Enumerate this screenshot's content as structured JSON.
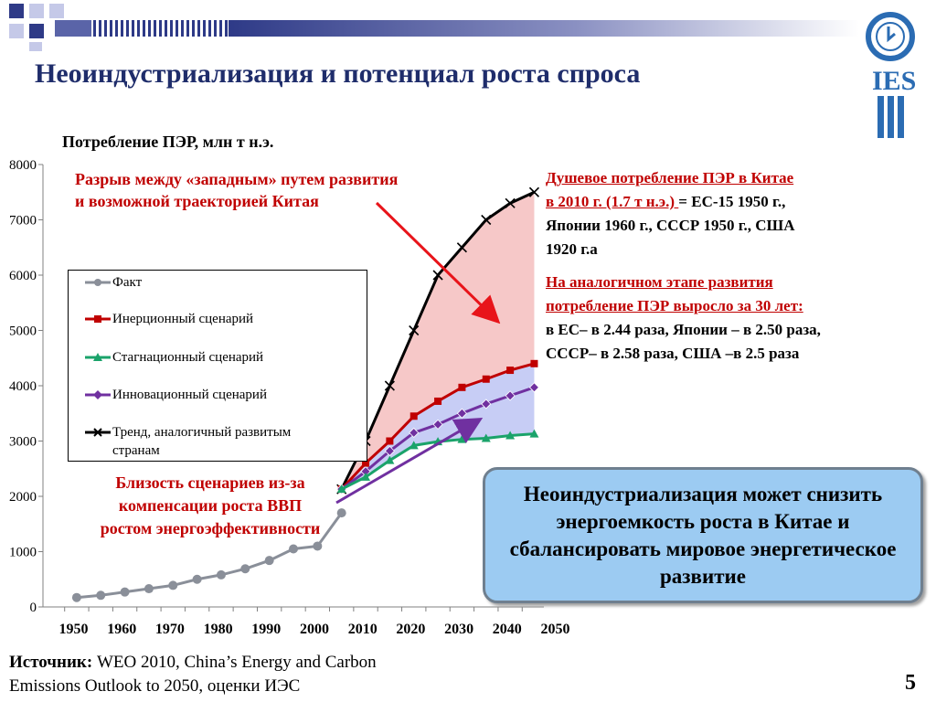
{
  "title": "Неоиндустриализация и потенциал роста спроса",
  "logo": {
    "text": "IES",
    "icon": "clock-circle-icon"
  },
  "chart_header": "Потребление ПЭР, млн т н.э.",
  "legend": {
    "fact": "Факт",
    "inertial": "Инерционный сценарий",
    "stagnation": "Стагнационный сценарий",
    "innovation": "Инновационный сценарий",
    "trend_line1": "Тренд, аналогичный развитым",
    "trend_line2": "странам"
  },
  "annotations": {
    "gap_line1": "Разрыв между «западным» путем развития",
    "gap_line2": "и возможной траекторией Китая",
    "close_line1": "Близость сценариев из-за",
    "close_line2": "компенсации роста ВВП",
    "close_line3": "ростом энергоэффективности"
  },
  "right_text": {
    "p1_line1": "Душевое потребление ПЭР в Китае",
    "p1_line2_u": "в 2010 г. (1.7 т н.э.) ",
    "p1_line2_rest": "= ЕС-15 1950 г.,",
    "p1_line3": "Японии 1960 г., СССР 1950 г., США",
    "p1_line4": "1920 г.а",
    "p2_line1": "На аналогичном этапе развития",
    "p2_line2": "потребление ПЭР выросло за 30 лет:",
    "p2_line3": "в ЕС– в 2.44 раза, Японии – в 2.50 раза,",
    "p2_line4": "СССР– в 2.58 раза, США –в 2.5 раза"
  },
  "callout": "Неоиндустриализация может снизить энергоемкость роста в Китае и сбалансировать мировое энергетическое развитие",
  "source_label": "Источник:",
  "source_line1": " WEO 2010, China’s Energy and Carbon",
  "source_line2": "Emissions Outlook to 2050, оценки ИЭС",
  "page_number": "5",
  "colors": {
    "title": "#1f2d6b",
    "fact": "#8a8f99",
    "inertial": "#c00000",
    "stagnation": "#1aa36a",
    "innovation": "#7030a0",
    "trend": "#000000",
    "gap_fill": "#f6c8c8",
    "blue_fill": "#c7cdf5",
    "callout_bg": "#9ccbf2",
    "annotation_red": "#c00000"
  },
  "chart_data": {
    "type": "line",
    "ylim": [
      0,
      8000
    ],
    "y_ticks": [
      "0",
      "1000",
      "2000",
      "3000",
      "4000",
      "5000",
      "6000",
      "7000",
      "8000"
    ],
    "x_tick_labels": [
      "1950",
      "1960",
      "1970",
      "1980",
      "1990",
      "2000",
      "2010",
      "2020",
      "2030",
      "2040",
      "2050"
    ],
    "xlim": [
      1948,
      2052
    ],
    "grid": false,
    "series": [
      {
        "name": "Факт",
        "key": "fact",
        "marker": "circle",
        "x": [
          1955,
          1960,
          1965,
          1970,
          1975,
          1980,
          1985,
          1990,
          1995,
          2000,
          2005,
          2010
        ],
        "y": [
          170,
          210,
          270,
          330,
          390,
          500,
          580,
          690,
          840,
          1050,
          1100,
          1700
        ]
      },
      {
        "name": "Инерционный сценарий",
        "key": "inertial",
        "marker": "square",
        "x": [
          2010,
          2015,
          2020,
          2025,
          2030,
          2035,
          2040,
          2045,
          2050
        ],
        "y": [
          2130,
          2600,
          3000,
          3450,
          3720,
          3970,
          4120,
          4280,
          4400
        ]
      },
      {
        "name": "Стагнационный сценарий",
        "key": "stagnation",
        "marker": "triangle",
        "x": [
          2010,
          2015,
          2020,
          2025,
          2030,
          2035,
          2040,
          2045,
          2050
        ],
        "y": [
          2130,
          2350,
          2650,
          2920,
          2990,
          3030,
          3050,
          3100,
          3130
        ]
      },
      {
        "name": "Инновационный сценарий",
        "key": "innovation",
        "marker": "diamond",
        "x": [
          2010,
          2015,
          2020,
          2025,
          2030,
          2035,
          2040,
          2045,
          2050
        ],
        "y": [
          2130,
          2450,
          2820,
          3150,
          3300,
          3500,
          3670,
          3820,
          3970
        ]
      },
      {
        "name": "Тренд, аналогичный развитым странам",
        "key": "trend",
        "marker": "x",
        "x": [
          2010,
          2015,
          2020,
          2025,
          2030,
          2035,
          2040,
          2045,
          2050
        ],
        "y": [
          2130,
          3000,
          4000,
          5000,
          6000,
          6500,
          7000,
          7300,
          7500
        ]
      }
    ]
  }
}
